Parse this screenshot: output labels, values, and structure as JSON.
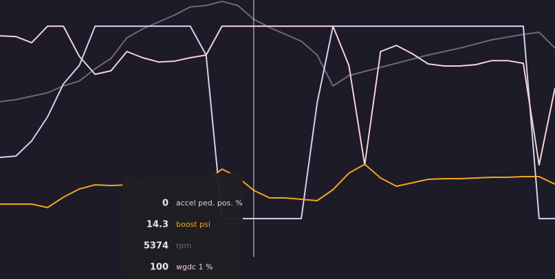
{
  "chart_data": {
    "type": "line",
    "categories": [
      null,
      null,
      null,
      null,
      null,
      null,
      null,
      null,
      null,
      null,
      null,
      null,
      null,
      null,
      null,
      null,
      null,
      null,
      null,
      null,
      null,
      null,
      null,
      null,
      null,
      null,
      null,
      null,
      null,
      null,
      null,
      null,
      null,
      null,
      null,
      null
    ],
    "cursor": 16,
    "series": [
      {
        "name": "accel ped. pos. %",
        "color": "#d6d2f2",
        "ylim": [
          -31.4,
          113.6
        ],
        "values": [
          31.8,
          32.5,
          40.4,
          52.9,
          70,
          79.6,
          100,
          100,
          100,
          100,
          100,
          100,
          100,
          85,
          0,
          0,
          0,
          0,
          0,
          0,
          60,
          100,
          100,
          100,
          100,
          100,
          100,
          100,
          100,
          100,
          100,
          100,
          100,
          100,
          0,
          0
        ]
      },
      {
        "name": "boost psi",
        "color": "#f5a623",
        "ylim": [
          1.4,
          42
        ],
        "values": [
          12.3,
          12.3,
          12.3,
          11.8,
          13.3,
          14.5,
          15.1,
          15,
          15.1,
          15.5,
          15.6,
          15.5,
          15.5,
          15.6,
          17.4,
          16.2,
          14.3,
          13.2,
          13.2,
          13,
          12.8,
          14.4,
          16.8,
          18.1,
          16.1,
          14.9,
          15.4,
          15.9,
          16,
          16,
          16.1,
          16.2,
          16.2,
          16.3,
          16.3,
          15.2
        ]
      },
      {
        "name": "rpm",
        "color": "#6b6b75",
        "ylim": [
          -2186,
          5934
        ],
        "values": [
          2974,
          3034,
          3134,
          3234,
          3434,
          3574,
          3934,
          4234,
          4834,
          5094,
          5294,
          5494,
          5734,
          5774,
          5894,
          5774,
          5374,
          5134,
          4934,
          4734,
          4334,
          3434,
          3734,
          3854,
          3974,
          4094,
          4214,
          4334,
          4434,
          4534,
          4654,
          4774,
          4854,
          4934,
          4994,
          4534
        ]
      },
      {
        "name": "wgdc 1 %",
        "color": "#f7d3da",
        "ylim": [
          -31.4,
          113.6
        ],
        "values": [
          95,
          94.6,
          91.4,
          100,
          100,
          84.3,
          75,
          76.8,
          86.8,
          83.6,
          81.4,
          81.8,
          83.6,
          85,
          100,
          100,
          100,
          100,
          100,
          100,
          100,
          100,
          79.6,
          27.9,
          86.8,
          90,
          85.7,
          80.4,
          79.3,
          79.3,
          80,
          82.1,
          82.1,
          80.7,
          27.9,
          67.9
        ]
      }
    ]
  }
}
